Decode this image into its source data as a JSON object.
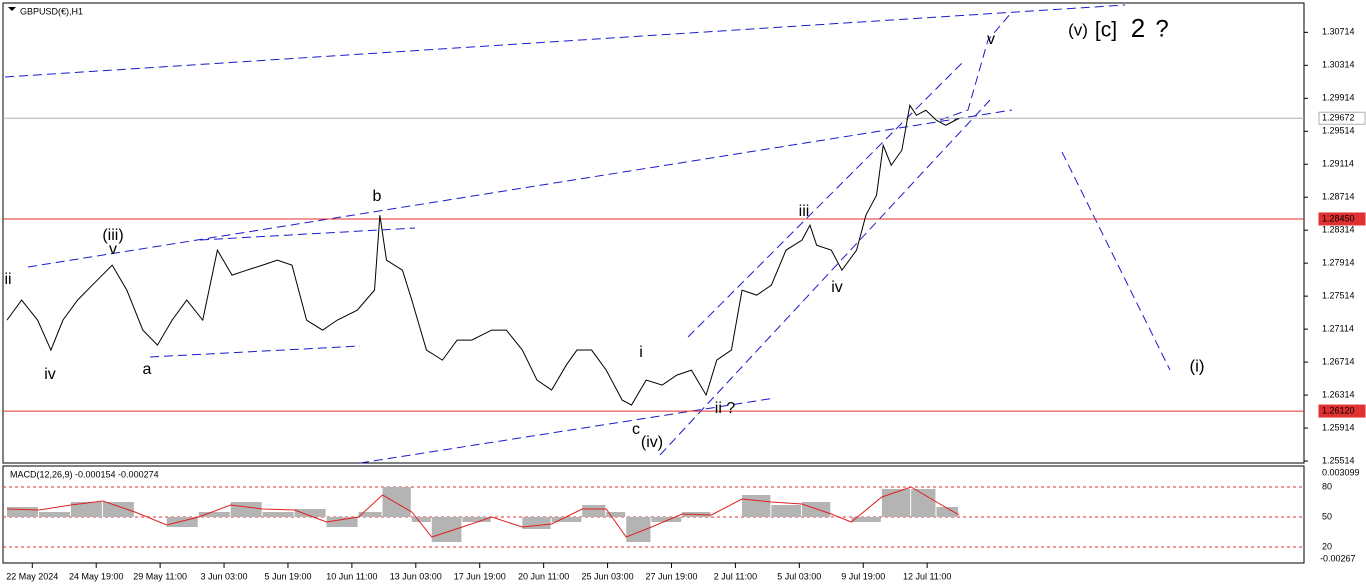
{
  "chart_data": [
    {
      "type": "line",
      "title": "GBPUSD(€),H1",
      "x": [
        -19,
        -8,
        4,
        14,
        23,
        34,
        45,
        60,
        71,
        83,
        94,
        105,
        116,
        128,
        139,
        150,
        161,
        173,
        184,
        195,
        206,
        218,
        229,
        244,
        257,
        261,
        266,
        278,
        285,
        296,
        308,
        319,
        330,
        345,
        356,
        368,
        379,
        390,
        401,
        409,
        420,
        431,
        443,
        450,
        461,
        473,
        484,
        495,
        506,
        514,
        525,
        533,
        544,
        555,
        566,
        578,
        584,
        589,
        600,
        608,
        619,
        626,
        634,
        639,
        645,
        653,
        659,
        664,
        671,
        679,
        686,
        696
      ],
      "series": [
        {
          "name": "GBPUSD",
          "color": "#000000",
          "values": [
            1.27223,
            1.27466,
            1.27223,
            1.2686,
            1.27223,
            1.27466,
            1.27647,
            1.2789,
            1.27587,
            1.27102,
            1.2692,
            1.27223,
            1.27466,
            1.27223,
            1.28072,
            1.27769,
            1.27829,
            1.2789,
            1.2795,
            1.2789,
            1.27223,
            1.27102,
            1.27223,
            1.27344,
            1.27587,
            1.28496,
            1.2795,
            1.27829,
            1.27466,
            1.2686,
            1.26738,
            1.26981,
            1.26981,
            1.27102,
            1.27102,
            1.2686,
            1.26496,
            1.26375,
            1.26678,
            1.2686,
            1.2686,
            1.26617,
            1.26253,
            1.26193,
            1.26496,
            1.26435,
            1.26556,
            1.26617,
            1.26314,
            1.26738,
            1.2686,
            1.27587,
            1.27526,
            1.27647,
            1.28072,
            1.28193,
            1.28375,
            1.28132,
            1.28072,
            1.27829,
            1.28072,
            1.28496,
            1.28738,
            1.29344,
            1.29102,
            1.29284,
            1.29829,
            1.29708,
            1.29769,
            1.29647,
            1.29587,
            1.29672
          ]
        }
      ],
      "xlim": [
        -22,
        955
      ],
      "xticks": [
        {
          "value": 0,
          "label": "22 May 2024"
        },
        {
          "value": 48,
          "label": "24 May 19:00"
        },
        {
          "value": 96,
          "label": "29 May 11:00"
        },
        {
          "value": 144,
          "label": "3 Jun 03:00"
        },
        {
          "value": 192,
          "label": "5 Jun 19:00"
        },
        {
          "value": 240,
          "label": "10 Jun 11:00"
        },
        {
          "value": 288,
          "label": "13 Jun 03:00"
        },
        {
          "value": 336,
          "label": "17 Jun 19:00"
        },
        {
          "value": 384,
          "label": "20 Jun 11:00"
        },
        {
          "value": 432,
          "label": "25 Jun 03:00"
        },
        {
          "value": 480,
          "label": "27 Jun 19:00"
        },
        {
          "value": 528,
          "label": "2 Jul 11:00"
        },
        {
          "value": 576,
          "label": "5 Jul 03:00"
        },
        {
          "value": 624,
          "label": "9 Jul 19:00"
        },
        {
          "value": 672,
          "label": "12 Jul 11:00"
        }
      ],
      "ylim": [
        1.2549,
        1.3107
      ],
      "yticks": [
        1.30714,
        1.30314,
        1.29914,
        1.29514,
        1.29114,
        1.28714,
        1.28314,
        1.27914,
        1.27514,
        1.27114,
        1.26714,
        1.26314,
        1.25914,
        1.25514
      ],
      "price_lines": [
        {
          "value": 1.2845,
          "label": "1.28450",
          "color": "#e03030"
        },
        {
          "value": 1.2612,
          "label": "1.26120",
          "color": "#e03030"
        },
        {
          "value": 1.29672,
          "label": "1.29672",
          "color": "#b0b0b0"
        }
      ],
      "annotations": [
        {
          "text": "ii",
          "color": "#e020e0"
        },
        {
          "text": "iv",
          "color": "#e020e0"
        },
        {
          "text": "(iii)",
          "color": "#1a1a9a"
        },
        {
          "text": "v",
          "color": "#e020e0"
        },
        {
          "text": "a",
          "color": "#e020e0"
        },
        {
          "text": "b",
          "color": "#e020e0"
        },
        {
          "text": "c",
          "color": "#e020e0"
        },
        {
          "text": "(iv)",
          "color": "#1a1a9a"
        },
        {
          "text": "i",
          "color": "#e020e0"
        },
        {
          "text": "ii ?",
          "color": "#e020e0"
        },
        {
          "text": "iii",
          "color": "#e020e0"
        },
        {
          "text": "iv",
          "color": "#e020e0"
        },
        {
          "text": "v",
          "color": "#e020e0"
        },
        {
          "text": "(v)",
          "color": "#1a1a9a"
        },
        {
          "text": "[c]",
          "color": "#1a8a1a"
        },
        {
          "text": "2",
          "color": "#e01010"
        },
        {
          "text": "?",
          "color": "#e01010"
        },
        {
          "text": "(i)",
          "color": "#1a1a9a"
        }
      ]
    },
    {
      "type": "macd",
      "title": "MACD(12,26,9) -0.000154 -0.000274",
      "x": [
        -19,
        5,
        29,
        53,
        77,
        101,
        125,
        149,
        173,
        197,
        221,
        245,
        263,
        285,
        300,
        323,
        345,
        368,
        390,
        413,
        431,
        446,
        465,
        488,
        510,
        533,
        555,
        578,
        600,
        615,
        638,
        660,
        679,
        696
      ],
      "series": [
        {
          "name": "MACD",
          "color": "#b4b4b4",
          "values": [
            60,
            55,
            65,
            65,
            50,
            40,
            55,
            65,
            55,
            58,
            40,
            55,
            80,
            45,
            25,
            45,
            50,
            38,
            45,
            62,
            55,
            25,
            45,
            55,
            50,
            72,
            62,
            65,
            50,
            45,
            78,
            78,
            60,
            50
          ]
        },
        {
          "name": "Signal",
          "color": "#e02020",
          "values": [
            58,
            57,
            62,
            66,
            55,
            42,
            50,
            62,
            58,
            57,
            45,
            50,
            72,
            55,
            30,
            40,
            50,
            40,
            43,
            58,
            58,
            30,
            40,
            53,
            52,
            68,
            65,
            63,
            53,
            45,
            70,
            80,
            65,
            52
          ]
        }
      ],
      "baseline": 50,
      "ylim": [
        5,
        101
      ],
      "yticks": [
        20,
        50,
        80
      ],
      "scale_labels": [
        "0.003099",
        "-0.00267"
      ]
    }
  ]
}
